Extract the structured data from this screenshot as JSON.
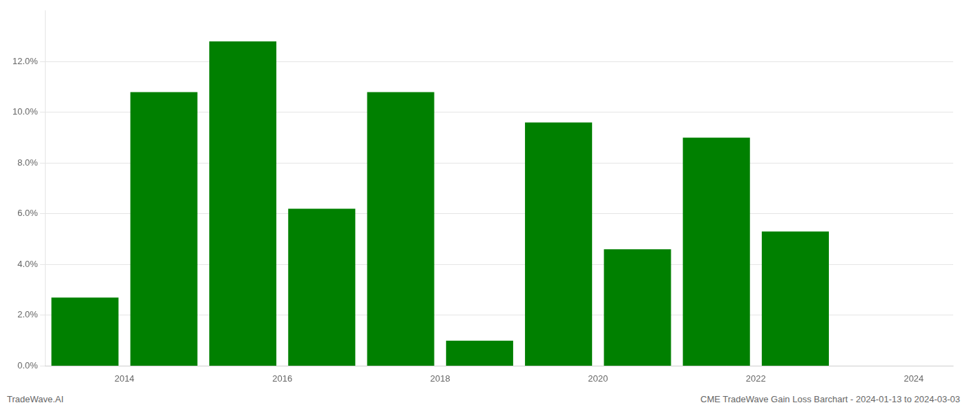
{
  "chart_data": {
    "type": "bar",
    "x": [
      2013.5,
      2014.5,
      2015.5,
      2016.5,
      2017.5,
      2018.5,
      2019.5,
      2020.5,
      2021.5,
      2022.5
    ],
    "values": [
      0.027,
      0.108,
      0.128,
      0.062,
      0.108,
      0.01,
      0.096,
      0.046,
      0.09,
      0.053
    ],
    "color": "#008000",
    "xlim": [
      2013.0,
      2024.5
    ],
    "xticks": [
      2014,
      2016,
      2018,
      2020,
      2022,
      2024
    ],
    "ylim": [
      0,
      0.14
    ],
    "yticks": [
      {
        "value": 0.0,
        "label": "0.0%"
      },
      {
        "value": 0.02,
        "label": "2.0%"
      },
      {
        "value": 0.04,
        "label": "4.0%"
      },
      {
        "value": 0.06,
        "label": "6.0%"
      },
      {
        "value": 0.08,
        "label": "8.0%"
      },
      {
        "value": 0.1,
        "label": "10.0%"
      },
      {
        "value": 0.12,
        "label": "12.0%"
      }
    ],
    "grid": true,
    "annotations": [
      "TradeWave.AI",
      "CME TradeWave Gain Loss Barchart - 2024-01-13 to 2024-03-03"
    ]
  }
}
